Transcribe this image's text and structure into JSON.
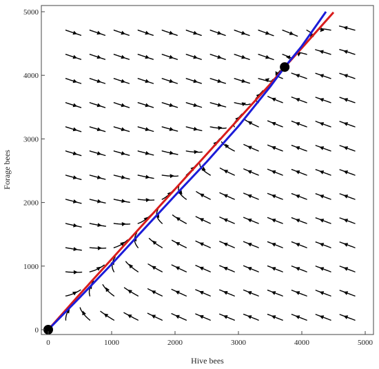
{
  "chart_data": {
    "type": "streamplot",
    "xlabel": "Hive bees",
    "ylabel": "Forage bees",
    "xlim": [
      0,
      5000
    ],
    "ylim": [
      0,
      5000
    ],
    "xticks": [
      0,
      1000,
      2000,
      3000,
      4000,
      5000
    ],
    "yticks": [
      0,
      1000,
      2000,
      3000,
      4000,
      5000
    ],
    "grid": false,
    "field": {
      "description": "stream arrows flow toward the diagonal separatrix from lower-right and upper-left",
      "slow_manifold_slope": 1.11
    },
    "series": [
      {
        "color": "#d81c1c",
        "x": [
          0,
          500,
          1000,
          1500,
          2000,
          2500,
          3000,
          3500,
          3730,
          4000,
          4500
        ],
        "y": [
          0,
          560,
          1110,
          1660,
          2210,
          2760,
          3310,
          3860,
          4130,
          4430,
          4990
        ]
      },
      {
        "color": "#1c1cd8",
        "x": [
          0,
          500,
          1000,
          1500,
          2000,
          2500,
          3000,
          3500,
          3730,
          4000,
          4380
        ],
        "y": [
          0,
          510,
          1030,
          1570,
          2110,
          2640,
          3200,
          3820,
          4130,
          4460,
          5000
        ]
      }
    ],
    "equilibria": [
      {
        "x": 0,
        "y": 0
      },
      {
        "x": 3730,
        "y": 4130
      }
    ]
  }
}
